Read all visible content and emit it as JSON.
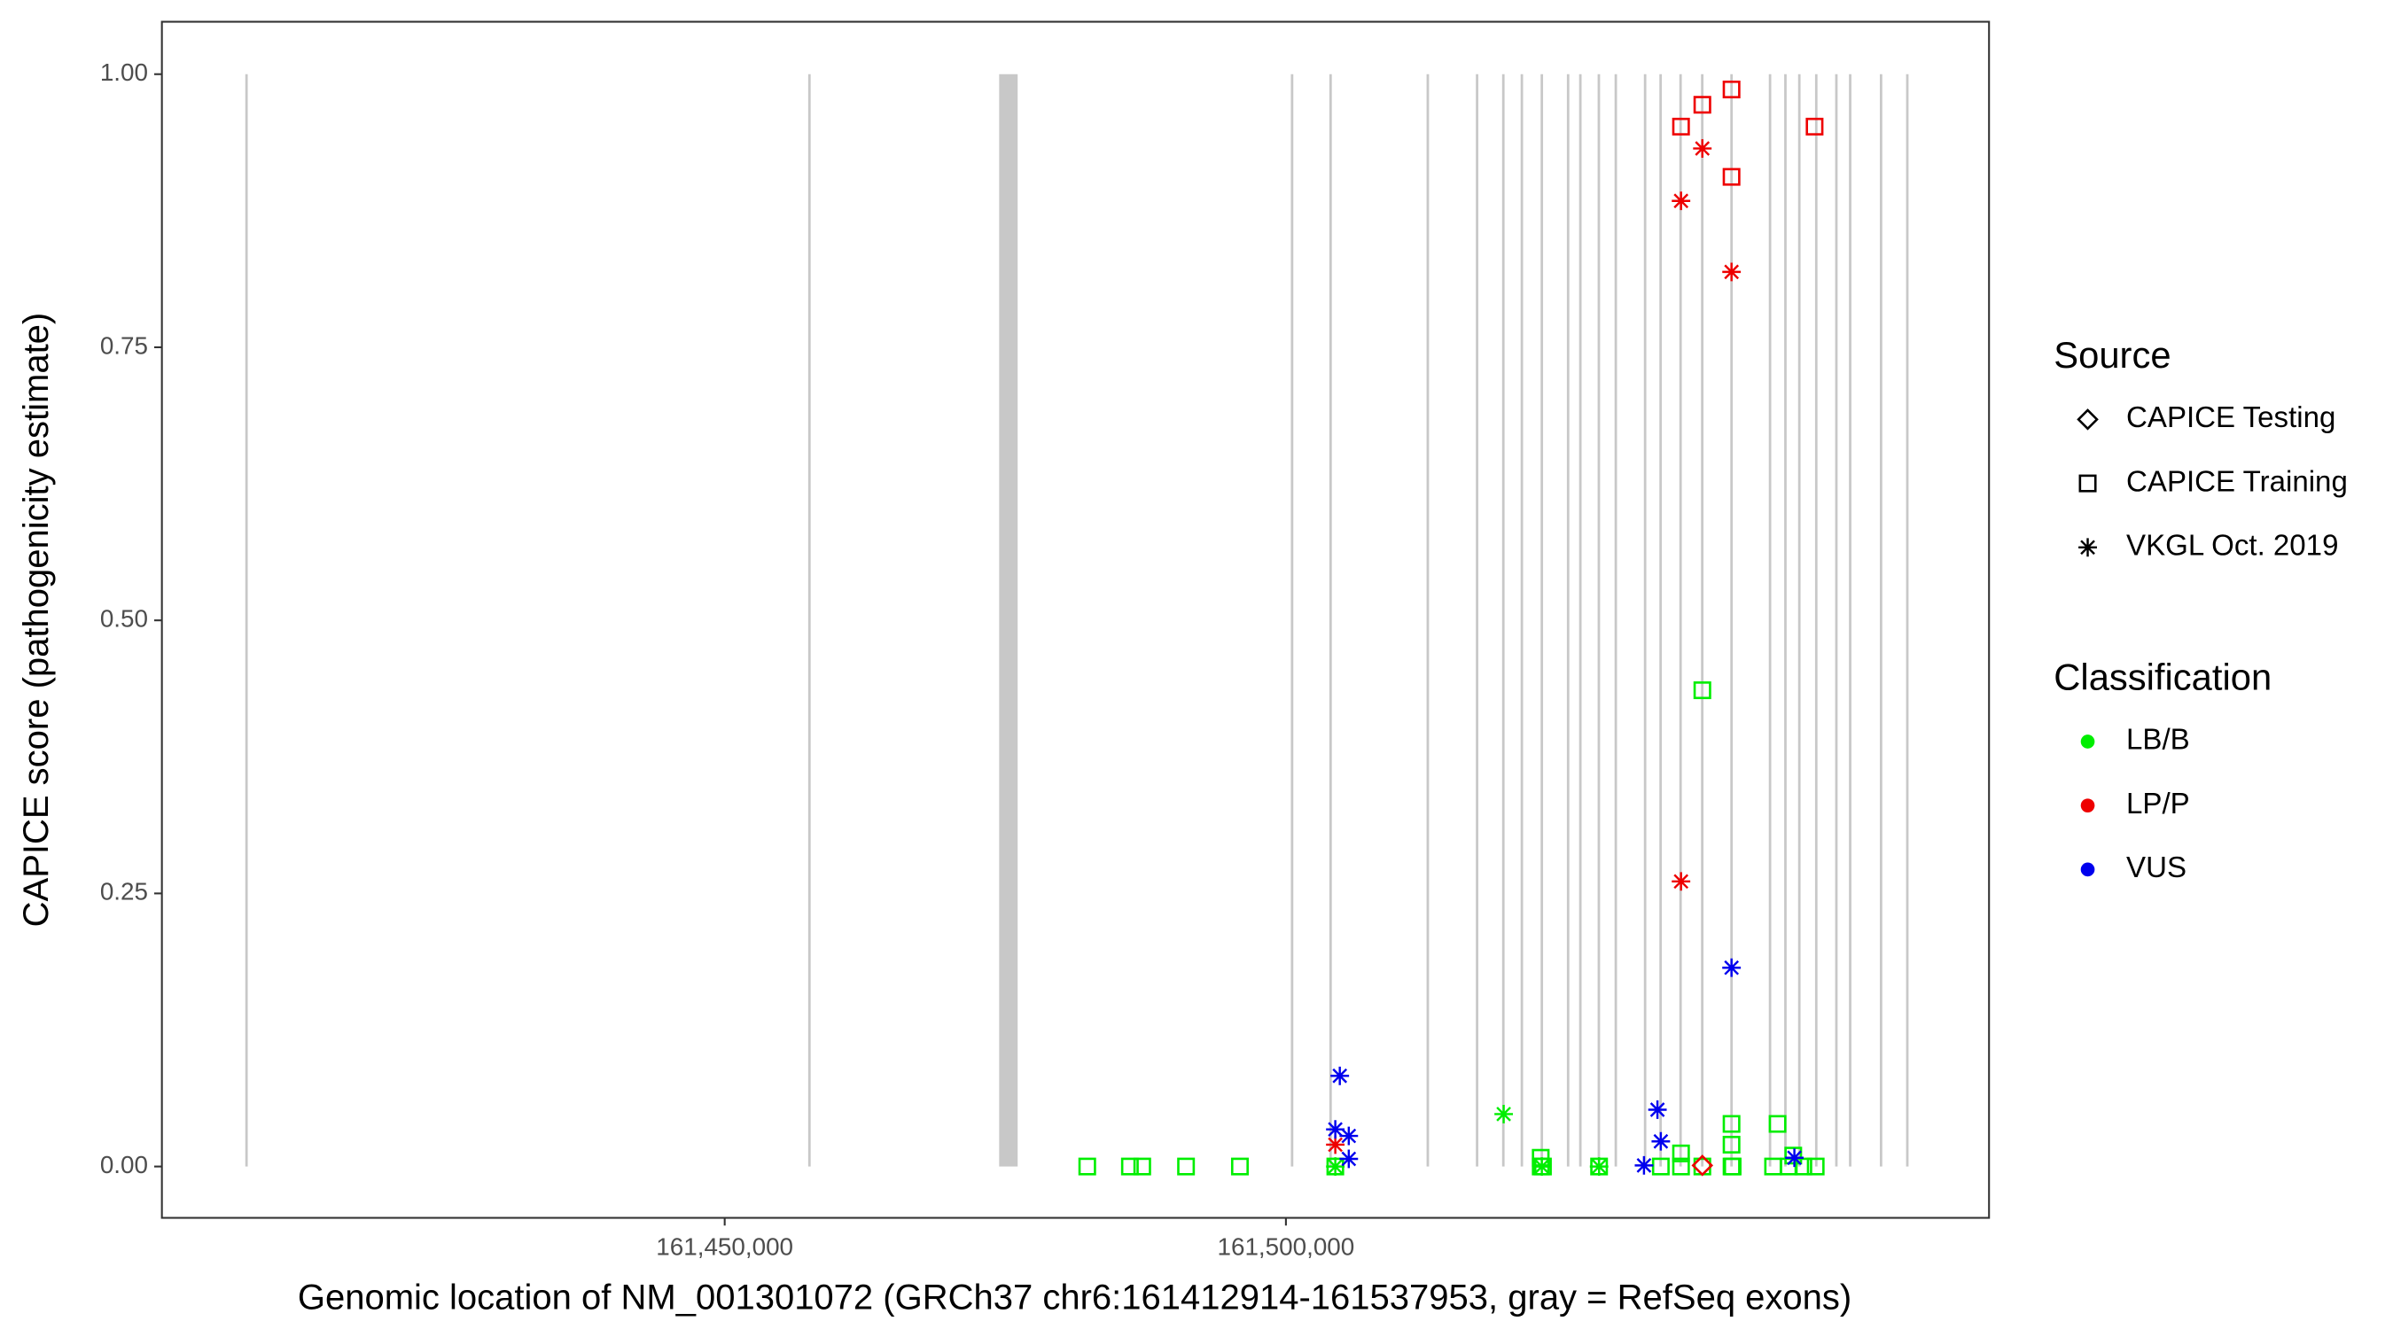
{
  "chart_data": {
    "type": "scatter",
    "x_label": "Genomic location of NM_001301072 (GRCh37 chr6:161412914-161537953, gray = RefSeq exons)",
    "y_label": "CAPICE score (pathogenicity estimate)",
    "xlim": [
      161399860,
      161562640
    ],
    "ylim": [
      -0.047,
      1.048
    ],
    "xticks": [
      {
        "value": 161450000,
        "label": "161,450,000"
      },
      {
        "value": 161500000,
        "label": "161,500,000"
      }
    ],
    "yticks": [
      {
        "value": 0,
        "label": "0.00"
      },
      {
        "value": 0.25,
        "label": "0.25"
      },
      {
        "value": 0.5,
        "label": "0.50"
      },
      {
        "value": 0.75,
        "label": "0.75"
      },
      {
        "value": 1,
        "label": "1.00"
      }
    ],
    "exon_color": "#c8c8c8",
    "exons": [
      [
        161407400,
        161407400
      ],
      [
        161457550,
        161457550
      ],
      [
        161474450,
        161476100
      ],
      [
        161500550,
        161500550
      ],
      [
        161503980,
        161503980
      ],
      [
        161512640,
        161512640
      ],
      [
        161517030,
        161517030
      ],
      [
        161519370,
        161519370
      ],
      [
        161521020,
        161521020
      ],
      [
        161522800,
        161522800
      ],
      [
        161525140,
        161525140
      ],
      [
        161526230,
        161526230
      ],
      [
        161527880,
        161527880
      ],
      [
        161529390,
        161529390
      ],
      [
        161532000,
        161532000
      ],
      [
        161533380,
        161533380
      ],
      [
        161535160,
        161535160
      ],
      [
        161537090,
        161537090
      ],
      [
        161539700,
        161539700
      ],
      [
        161543130,
        161543130
      ],
      [
        161544500,
        161544500
      ],
      [
        161545740,
        161545740
      ],
      [
        161547250,
        161547250
      ],
      [
        161549040,
        161549040
      ],
      [
        161550270,
        161550270
      ],
      [
        161553020,
        161553020
      ],
      [
        161555360,
        161555360
      ]
    ],
    "shape_legend": {
      "title": "Source",
      "items": [
        {
          "name": "CAPICE Testing",
          "shape": "diamond"
        },
        {
          "name": "CAPICE Training",
          "shape": "square"
        },
        {
          "name": "VKGL Oct. 2019",
          "shape": "asterisk"
        }
      ]
    },
    "color_legend": {
      "title": "Classification",
      "items": [
        {
          "name": "LB/B",
          "color": "#00ee00"
        },
        {
          "name": "LP/P",
          "color": "#ee0000"
        },
        {
          "name": "VUS",
          "color": "#0000ee"
        }
      ]
    },
    "series": [
      {
        "shape": "square",
        "color": "#00ee00",
        "x": [
          161482300,
          161486100,
          161487200,
          161491100,
          161495900,
          161504400,
          161522700,
          161522900,
          161527900,
          161533400,
          161535200,
          161537100,
          161539700,
          161539800,
          161543400,
          161544800,
          161546100,
          161547200,
          161537100,
          161539700,
          161543800,
          161539700,
          161522700,
          161535200,
          161545200
        ],
        "values": [
          0,
          0,
          0,
          0,
          0,
          0,
          0,
          0,
          0,
          0,
          0,
          0,
          0,
          0,
          0,
          0,
          0,
          0,
          0.436,
          0.039,
          0.039,
          0.02,
          0.008,
          0.012,
          0.01
        ]
      },
      {
        "shape": "asterisk",
        "color": "#00ee00",
        "x": [
          161519400,
          161504400,
          161527900,
          161522800
        ],
        "values": [
          0.048,
          0,
          0,
          0
        ]
      },
      {
        "shape": "square",
        "color": "#ee0000",
        "x": [
          161535200,
          161537100,
          161539700,
          161539700,
          161547100
        ],
        "values": [
          0.952,
          0.972,
          0.986,
          0.906,
          0.952
        ]
      },
      {
        "shape": "asterisk",
        "color": "#ee0000",
        "x": [
          161537100,
          161535200,
          161539700,
          161535200,
          161504400
        ],
        "values": [
          0.932,
          0.884,
          0.819,
          0.261,
          0.02
        ]
      },
      {
        "shape": "diamond",
        "color": "#ee0000",
        "x": [
          161537100
        ],
        "values": [
          0.001
        ]
      },
      {
        "shape": "asterisk",
        "color": "#0000ee",
        "x": [
          161504800,
          161504400,
          161505600,
          161505600,
          161533100,
          161533400,
          161539700,
          161531900,
          161545300
        ],
        "values": [
          0.083,
          0.034,
          0.028,
          0.007,
          0.052,
          0.023,
          0.182,
          0.001,
          0.008
        ]
      }
    ]
  }
}
